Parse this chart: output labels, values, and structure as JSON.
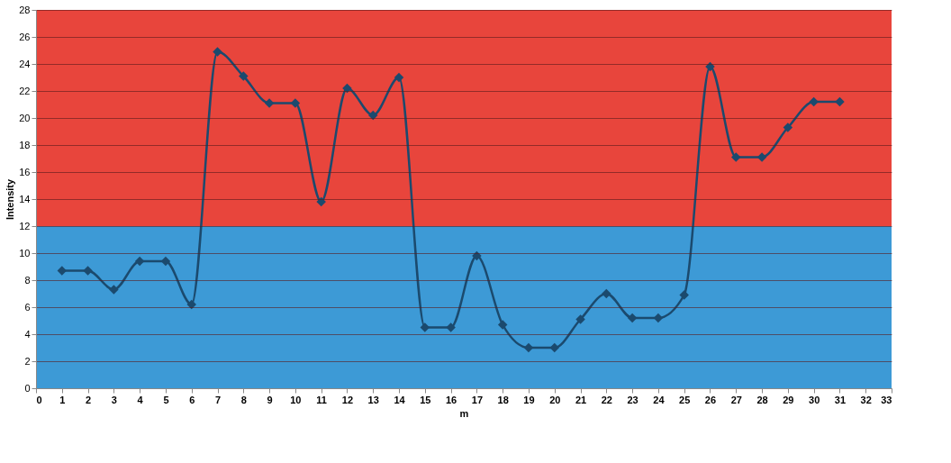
{
  "chart_data": {
    "type": "line",
    "xlabel": "m",
    "ylabel": "Intensity",
    "x": [
      1,
      2,
      3,
      4,
      5,
      6,
      7,
      8,
      9,
      10,
      11,
      12,
      13,
      14,
      15,
      16,
      17,
      18,
      19,
      20,
      21,
      22,
      23,
      24,
      25,
      26,
      27,
      28,
      29,
      30,
      31
    ],
    "series": [
      {
        "color": "#1b4a6e",
        "values": [
          8.7,
          8.7,
          7.3,
          9.4,
          9.4,
          6.2,
          24.9,
          23.1,
          21.1,
          21.1,
          13.8,
          22.2,
          20.2,
          23.0,
          4.5,
          4.5,
          9.8,
          4.7,
          3.0,
          3.0,
          5.1,
          7.0,
          5.2,
          5.2,
          6.9,
          23.8,
          17.1,
          17.1,
          19.3,
          21.2,
          21.2
        ]
      }
    ],
    "xlim": [
      0,
      33
    ],
    "xticks": [
      0,
      1,
      2,
      3,
      4,
      5,
      6,
      7,
      8,
      9,
      10,
      11,
      12,
      13,
      14,
      15,
      16,
      17,
      18,
      19,
      20,
      21,
      22,
      23,
      24,
      25,
      26,
      27,
      28,
      29,
      30,
      31,
      32,
      33
    ],
    "ylim": [
      0,
      28
    ],
    "yticks": [
      0,
      2,
      4,
      6,
      8,
      10,
      12,
      14,
      16,
      18,
      20,
      22,
      24,
      26,
      28
    ],
    "bands": [
      {
        "axis": "y",
        "from": 12,
        "to": 28,
        "color": "#e8453c"
      },
      {
        "axis": "y",
        "from": 0,
        "to": 12,
        "color": "#3d9ad6"
      }
    ],
    "grid": "y",
    "marker": "diamond",
    "line_style": "solid"
  }
}
